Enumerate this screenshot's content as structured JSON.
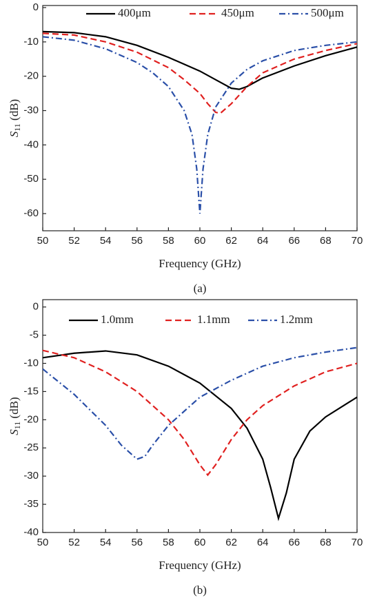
{
  "chart_data": [
    {
      "type": "line",
      "panel_label": "(a)",
      "xlabel": "Frequency (GHz)",
      "ylabel": {
        "symbol": "S",
        "subscript": "11",
        "unit": " (dB)"
      },
      "xlim": [
        50,
        70
      ],
      "xticks": [
        50,
        52,
        54,
        56,
        58,
        60,
        62,
        64,
        66,
        68,
        70
      ],
      "ylim": [
        -65,
        0.6
      ],
      "yticks": [
        0,
        -10,
        -20,
        -30,
        -40,
        -50,
        -60
      ],
      "series": [
        {
          "name": "400μm",
          "color": "#000000",
          "dash": "solid",
          "x": [
            50,
            52,
            54,
            56,
            58,
            60,
            61,
            62,
            62.5,
            63,
            64,
            66,
            68,
            70
          ],
          "values": [
            -7,
            -7.3,
            -8.5,
            -11,
            -14.5,
            -18.5,
            -21,
            -23.5,
            -23.8,
            -23,
            -20.5,
            -17,
            -14,
            -11.5
          ]
        },
        {
          "name": "450μm",
          "color": "#e0201f",
          "dash": "dash",
          "x": [
            50,
            52,
            54,
            56,
            58,
            59,
            60,
            60.5,
            61,
            61.3,
            62,
            63,
            64,
            66,
            68,
            70
          ],
          "values": [
            -7.5,
            -8,
            -10,
            -13,
            -17.5,
            -21,
            -25,
            -28,
            -30.5,
            -30.8,
            -28,
            -23,
            -19,
            -15,
            -12.5,
            -10.5
          ]
        },
        {
          "name": "500μm",
          "color": "#2a4fa8",
          "dash": "dashdot",
          "x": [
            50,
            52,
            54,
            56,
            57,
            58,
            59,
            59.5,
            59.8,
            60,
            60.2,
            60.5,
            61,
            62,
            63,
            64,
            66,
            68,
            70
          ],
          "values": [
            -8.5,
            -9.5,
            -12,
            -16,
            -19,
            -23,
            -30,
            -37,
            -47,
            -60,
            -47,
            -37,
            -29,
            -22,
            -18,
            -15.5,
            -12.5,
            -11,
            -10
          ]
        }
      ]
    },
    {
      "type": "line",
      "panel_label": "(b)",
      "xlabel": "Frequency (GHz)",
      "ylabel": {
        "symbol": "S",
        "subscript": "11",
        "unit": " (dB)"
      },
      "xlim": [
        50,
        70
      ],
      "xticks": [
        50,
        52,
        54,
        56,
        58,
        60,
        62,
        64,
        66,
        68,
        70
      ],
      "ylim": [
        -40,
        1.3
      ],
      "yticks": [
        0,
        -5,
        -10,
        -15,
        -20,
        -25,
        -30,
        -35,
        -40
      ],
      "series": [
        {
          "name": "1.0mm",
          "color": "#000000",
          "dash": "solid",
          "x": [
            50,
            52,
            54,
            56,
            58,
            60,
            62,
            63,
            64,
            64.5,
            65,
            65.5,
            66,
            67,
            68,
            70
          ],
          "values": [
            -9,
            -8.2,
            -7.8,
            -8.5,
            -10.5,
            -13.5,
            -18,
            -21.5,
            -27,
            -32,
            -37.5,
            -33,
            -27,
            -22,
            -19.5,
            -16
          ]
        },
        {
          "name": "1.1mm",
          "color": "#e0201f",
          "dash": "dash",
          "x": [
            50,
            52,
            54,
            56,
            58,
            59,
            60,
            60.5,
            61,
            62,
            63,
            64,
            66,
            68,
            70
          ],
          "values": [
            -7.7,
            -9,
            -11.5,
            -15,
            -20,
            -23.5,
            -28,
            -29.8,
            -28,
            -23.5,
            -20,
            -17.5,
            -14,
            -11.5,
            -10
          ]
        },
        {
          "name": "1.2mm",
          "color": "#2a4fa8",
          "dash": "dashdot",
          "x": [
            50,
            52,
            54,
            55,
            56,
            56.5,
            57,
            58,
            60,
            62,
            64,
            66,
            68,
            70
          ],
          "values": [
            -11,
            -15.5,
            -21,
            -24.5,
            -27,
            -26.5,
            -24.5,
            -21,
            -16,
            -13,
            -10.5,
            -9,
            -8,
            -7.2
          ]
        }
      ]
    }
  ]
}
